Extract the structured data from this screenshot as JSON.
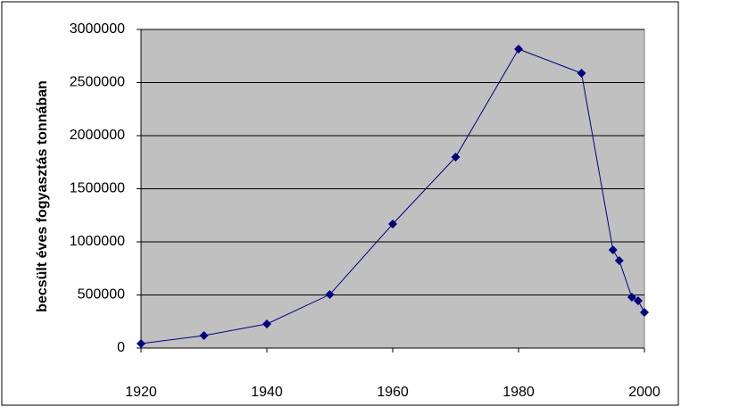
{
  "chart_data": {
    "type": "line",
    "y_label": "becsült éves fogyasztás tonnában",
    "x": [
      1920,
      1930,
      1940,
      1950,
      1960,
      1970,
      1980,
      1990,
      1995,
      1996,
      1998,
      1999,
      2000
    ],
    "series": [
      {
        "name": "fogyasztás",
        "color": "#000080",
        "values": [
          42000,
          118000,
          227000,
          504000,
          1168000,
          1798000,
          2815000,
          2588000,
          924000,
          824000,
          479000,
          445000,
          336000
        ]
      }
    ],
    "xlim": [
      1920,
      2000
    ],
    "xticks": [
      1920,
      1940,
      1960,
      1980,
      2000
    ],
    "ylim": [
      0,
      3000000
    ],
    "yticks": [
      0,
      500000,
      1000000,
      1500000,
      2000000,
      2500000,
      3000000
    ],
    "grid": true,
    "background": "#c0c0c0"
  }
}
